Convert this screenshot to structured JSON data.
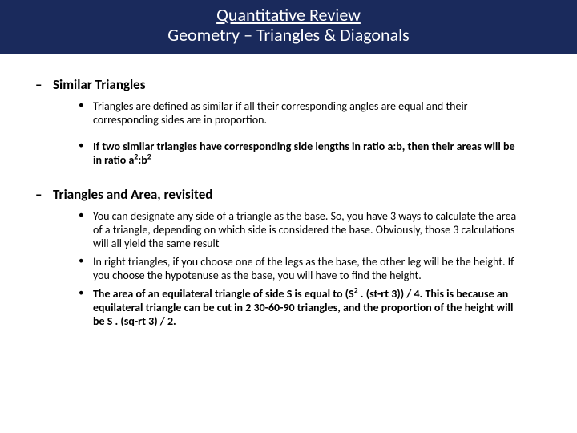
{
  "header": {
    "title": "Quantitative Review",
    "subtitle": "Geometry – Triangles & Diagonals",
    "bg_color": "#1a2a5c",
    "text_color": "#ffffff",
    "title_fontsize": 22
  },
  "sections": [
    {
      "heading": "Similar Triangles",
      "bullets": [
        {
          "bold": false,
          "html": "Triangles are defined as similar if all their corresponding angles are equal and their corresponding sides are in proportion."
        },
        {
          "bold": true,
          "html": "If two similar triangles have corresponding side lengths in ratio a:b, then their areas will be in ratio a<sup>2</sup>:b<sup>2</sup>"
        }
      ]
    },
    {
      "heading": "Triangles and Area, revisited",
      "bullets": [
        {
          "bold": false,
          "html": "You can designate any side of a triangle as the base. So, you have 3 ways to calculate the area of a triangle, depending on which side is considered the base. Obviously, those 3 calculations will all yield the same result"
        },
        {
          "bold": false,
          "html": "In right triangles, if you choose one of the legs as the base, the other leg will be the height. If you choose the hypotenuse as the base, you will have to find the height."
        },
        {
          "bold": false,
          "html": "<span class=\"bold\">The area of an equilateral triangle of side S is equal to (S<sup>2</sup> . (st-rt 3)) / 4. This is because an equilateral triangle can be cut in 2 30-60-90 triangles, and the proportion of the height will be S . (sq-rt 3) / 2.</span>"
        }
      ]
    }
  ],
  "body_fontsize": 14,
  "heading_fontsize": 17,
  "background_color": "#ffffff",
  "text_color": "#000000"
}
